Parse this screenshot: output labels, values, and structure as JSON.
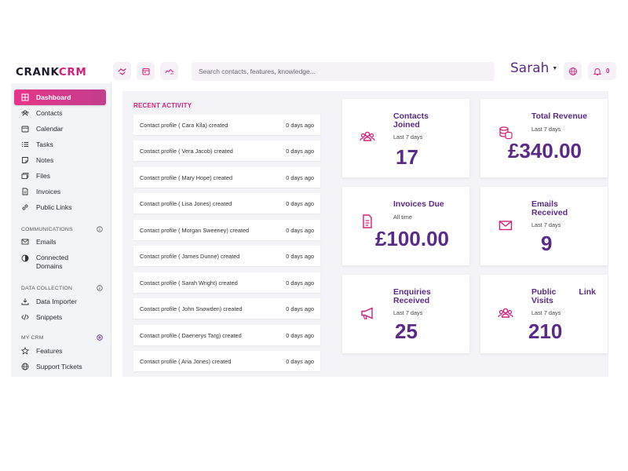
{
  "brand": {
    "part1": "CRANK",
    "part2": "CRM"
  },
  "search": {
    "placeholder": "Search contacts, features, knowledge..."
  },
  "user": {
    "name": "Sarah",
    "notifications": "0"
  },
  "sidebar": {
    "items": [
      {
        "label": "Dashboard",
        "icon": "dashboard-icon",
        "active": true
      },
      {
        "label": "Contacts",
        "icon": "contacts-icon"
      },
      {
        "label": "Calendar",
        "icon": "calendar-icon"
      },
      {
        "label": "Tasks",
        "icon": "tasks-icon"
      },
      {
        "label": "Notes",
        "icon": "notes-icon"
      },
      {
        "label": "Files",
        "icon": "files-icon"
      },
      {
        "label": "Invoices",
        "icon": "invoices-icon"
      },
      {
        "label": "Public Links",
        "icon": "link-icon"
      }
    ],
    "communications": {
      "label": "COMMUNICATIONS",
      "items": [
        {
          "label": "Emails",
          "icon": "email-icon"
        },
        {
          "label": "Connected Domains",
          "icon": "domain-icon"
        }
      ]
    },
    "data_collection": {
      "label": "DATA COLLECTION",
      "items": [
        {
          "label": "Data Importer",
          "icon": "import-icon"
        },
        {
          "label": "Snippets",
          "icon": "code-icon"
        }
      ]
    },
    "my_crm": {
      "label": "MY CRM",
      "items": [
        {
          "label": "Features",
          "icon": "star-icon"
        },
        {
          "label": "Support Tickets",
          "icon": "globe-icon"
        }
      ]
    }
  },
  "activity": {
    "title": "RECENT ACTIVITY",
    "rows": [
      {
        "text": "Contact profile ( Cara Kila) created",
        "time": "0 days ago"
      },
      {
        "text": "Contact profile ( Vera Jacob) created",
        "time": "0 days ago"
      },
      {
        "text": "Contact profile ( Mary Hope) created",
        "time": "0 days ago"
      },
      {
        "text": "Contact profile ( Lisa Jones) created",
        "time": "0 days ago"
      },
      {
        "text": "Contact profile ( Morgan Sweeney) created",
        "time": "0 days ago"
      },
      {
        "text": "Contact profile ( James Dunne) created",
        "time": "0 days ago"
      },
      {
        "text": "Contact profile ( Sarah Wright) created",
        "time": "0 days ago"
      },
      {
        "text": "Contact profile ( John Snowden) created",
        "time": "0 days ago"
      },
      {
        "text": "Contact profile ( Daenerys Targ) created",
        "time": "0 days ago"
      },
      {
        "text": "Contact profile ( Aria Jones) created",
        "time": "0 days ago"
      }
    ]
  },
  "stats": {
    "contacts": {
      "title_line1": "Contacts",
      "title_line2": "Joined",
      "period": "Last 7 days",
      "value": "17"
    },
    "revenue": {
      "title": "Total Revenue",
      "period": "Last 7 days",
      "value": "£340.00"
    },
    "invoices": {
      "title": "Invoices Due",
      "period": "All time",
      "value": "£100.00"
    },
    "emails": {
      "title_line1": "Emails",
      "title_line2": "Received",
      "period": "Last 7 days",
      "value": "9"
    },
    "enquiries": {
      "title_line1": "Enquiries",
      "title_line2": "Received",
      "period": "Last 7 days",
      "value": "25"
    },
    "public_link": {
      "title_a": "Public",
      "title_b": "Link",
      "title_c": "Visits",
      "period": "Last 7 days",
      "value": "210"
    }
  },
  "colors": {
    "accent": "#d4207a",
    "purple": "#5b2a86",
    "sidebar_bg": "#f3f4f7",
    "main_bg": "#f4f4f8"
  }
}
